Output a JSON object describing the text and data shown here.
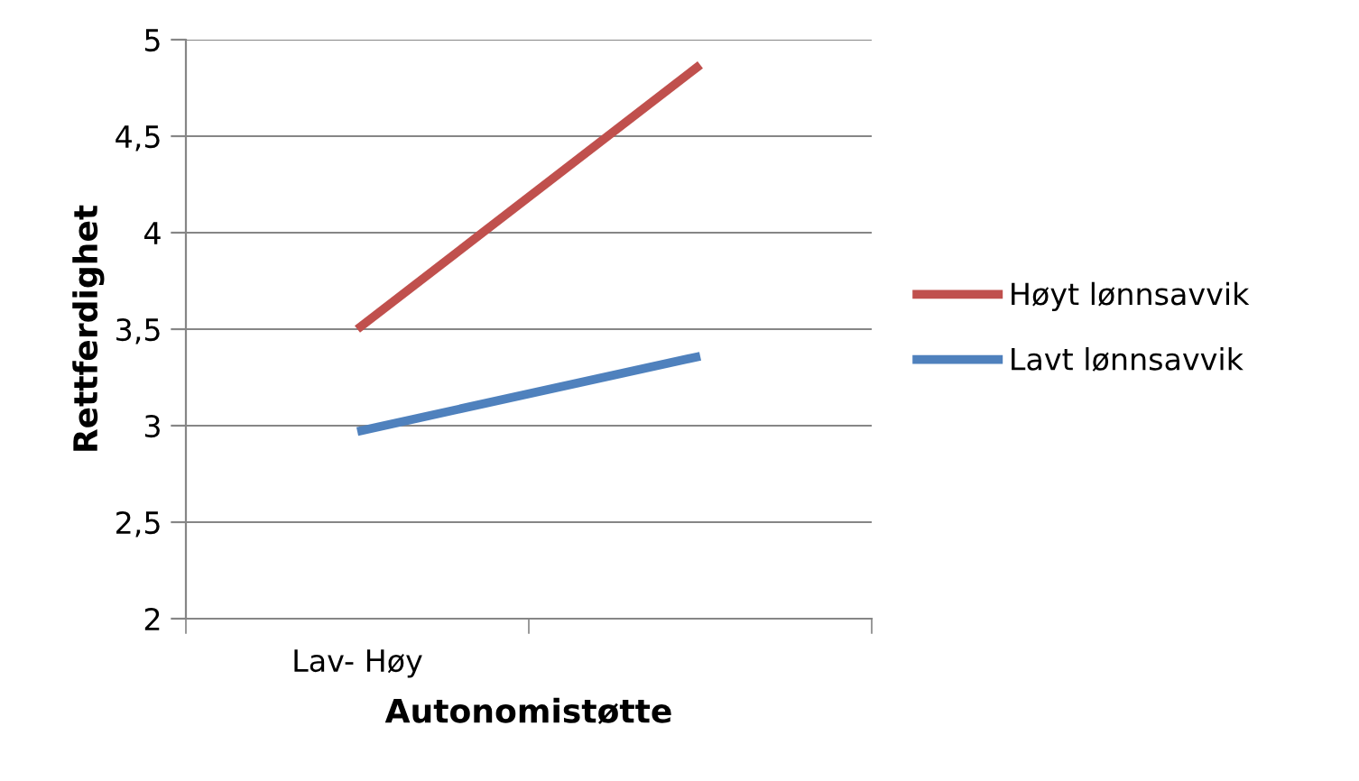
{
  "chart_data": {
    "type": "line",
    "xlabel": "Autonomistøtte",
    "ylabel": "Rettferdighet",
    "categories": [
      "Lav- Høy",
      null
    ],
    "series": [
      {
        "name": "Høyt lønnsavvik",
        "color": "#c0504d",
        "values": [
          3.5,
          4.87
        ]
      },
      {
        "name": "Lavt lønnsavvik",
        "color": "#4f81bd",
        "values": [
          2.97,
          3.36
        ]
      }
    ],
    "ylim": [
      2,
      5
    ],
    "yticks": [
      2,
      {
        "value": 2.5,
        "label": "2,5"
      },
      3,
      {
        "value": 3.5,
        "label": "3,5"
      },
      4,
      {
        "value": 4.5,
        "label": "4,5"
      },
      5
    ],
    "grid": "y",
    "legend": "right",
    "marker": "none",
    "line_style": "solid"
  }
}
